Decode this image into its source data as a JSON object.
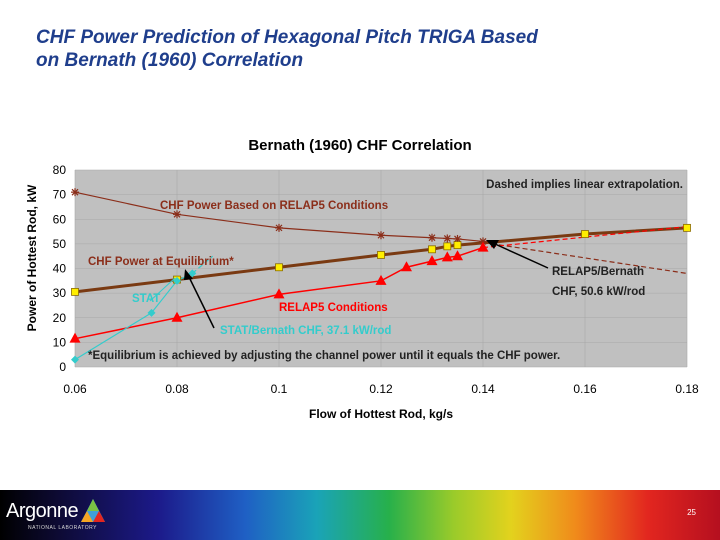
{
  "slide": {
    "title_line1": "CHF Power Prediction of Hexagonal Pitch TRIGA Based",
    "title_line2": "on Bernath (1960) Correlation",
    "page_number": "25",
    "logo_text": "Argonne",
    "logo_subtext": "NATIONAL LABORATORY"
  },
  "colors": {
    "title": "#1f3e8c",
    "plot_bg": "#c0c0c0",
    "bernath": "#8b2e1a",
    "relap5": "#ff0000",
    "stat": "#33cccc",
    "equilibrium": "#7a3a12",
    "marker_fill": "#ffee00"
  },
  "chart_data": {
    "type": "line",
    "title": "Bernath (1960) CHF Correlation",
    "xlabel": "Flow of Hottest Rod, kg/s",
    "ylabel": "Power of Hottest Rod, kW",
    "xlim": [
      0.06,
      0.18
    ],
    "ylim": [
      0,
      80
    ],
    "x_ticks": [
      0.06,
      0.08,
      0.1,
      0.12,
      0.14,
      0.16,
      0.18
    ],
    "x_tick_labels": [
      "0.06",
      "0.08",
      "0.1",
      "0.12",
      "0.14",
      "0.16",
      "0.18"
    ],
    "y_ticks": [
      0,
      10,
      20,
      30,
      40,
      50,
      60,
      70,
      80
    ],
    "y_tick_labels": [
      "0",
      "10",
      "20",
      "30",
      "40",
      "50",
      "60",
      "70",
      "80"
    ],
    "series": [
      {
        "name": "CHF Power Based on RELAP5 Conditions",
        "marker": "star",
        "x": [
          0.06,
          0.08,
          0.1,
          0.12,
          0.13,
          0.133,
          0.135,
          0.14
        ],
        "y": [
          71,
          62,
          56.5,
          53.5,
          52.5,
          52.2,
          52,
          51
        ],
        "extrapolated": {
          "x": [
            0.14,
            0.18
          ],
          "y": [
            50.6,
            38
          ]
        }
      },
      {
        "name": "CHF Power at Equilibrium",
        "marker": "square",
        "x": [
          0.06,
          0.08,
          0.1,
          0.12,
          0.13,
          0.133,
          0.135,
          0.16,
          0.18
        ],
        "y": [
          30.5,
          35.5,
          40.5,
          45.5,
          47.8,
          49,
          49.5,
          54,
          56.5
        ]
      },
      {
        "name": "RELAP5 Conditions",
        "marker": "triangle",
        "x": [
          0.06,
          0.08,
          0.1,
          0.12,
          0.125,
          0.13,
          0.133,
          0.135,
          0.14
        ],
        "y": [
          11.5,
          20,
          29.5,
          35,
          40.5,
          43,
          44.5,
          45,
          48.5
        ],
        "extrapolated": {
          "x": [
            0.14,
            0.18
          ],
          "y": [
            48.5,
            57
          ]
        }
      },
      {
        "name": "STAT",
        "marker": "diamond",
        "x": [
          0.06,
          0.075,
          0.08,
          0.083
        ],
        "y": [
          3,
          22,
          35,
          38
        ],
        "extrapolated": {
          "x": [
            0.083,
            0.087
          ],
          "y": [
            38,
            45
          ]
        }
      }
    ],
    "annotations": {
      "dashed_note": "Dashed implies linear extrapolation.",
      "chf_relap5_label": "CHF Power Based on RELAP5 Conditions",
      "chf_equilibrium_label": "CHF Power at Equilibrium*",
      "relap5_label": "RELAP5 Conditions",
      "stat_label": "STAT",
      "relap5_bernath_line1": "RELAP5/Bernath",
      "relap5_bernath_line2": "CHF, 50.6 kW/rod",
      "stat_bernath": "STAT/Bernath CHF, 37.1 kW/rod",
      "equilibrium_note": "*Equilibrium is achieved by adjusting the channel power until it equals the CHF power."
    }
  }
}
